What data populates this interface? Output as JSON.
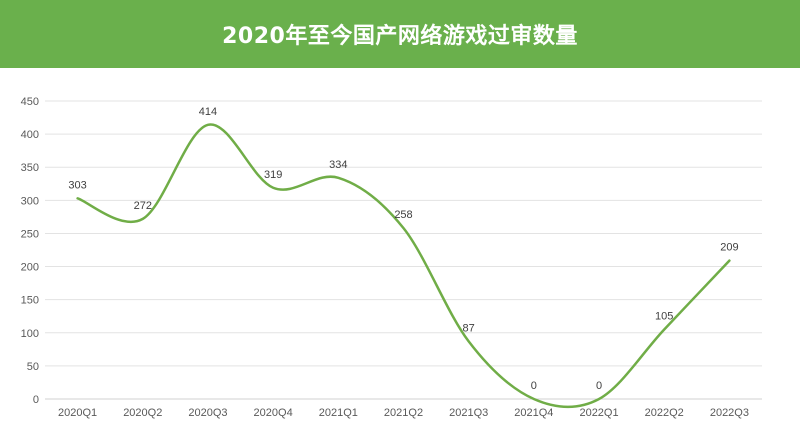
{
  "header": {
    "title": "2020年至今国产网络游戏过审数量",
    "background_color": "#6ab04c"
  },
  "chart_data": {
    "type": "line",
    "title": "2020年至今国产网络游戏过审数量",
    "xlabel": "",
    "ylabel": "",
    "categories": [
      "2020Q1",
      "2020Q2",
      "2020Q3",
      "2020Q4",
      "2021Q1",
      "2021Q2",
      "2021Q3",
      "2021Q4",
      "2022Q1",
      "2022Q2",
      "2022Q3"
    ],
    "series": [
      {
        "values": [
          303,
          272,
          414,
          319,
          334,
          258,
          87,
          0,
          0,
          105,
          209
        ],
        "color": "#70ad47",
        "smooth": true
      }
    ],
    "ylim": [
      0,
      450
    ],
    "yticks": [
      0,
      50,
      100,
      150,
      200,
      250,
      300,
      350,
      400,
      450
    ],
    "grid": true,
    "legend": "none",
    "data_labels": true
  }
}
